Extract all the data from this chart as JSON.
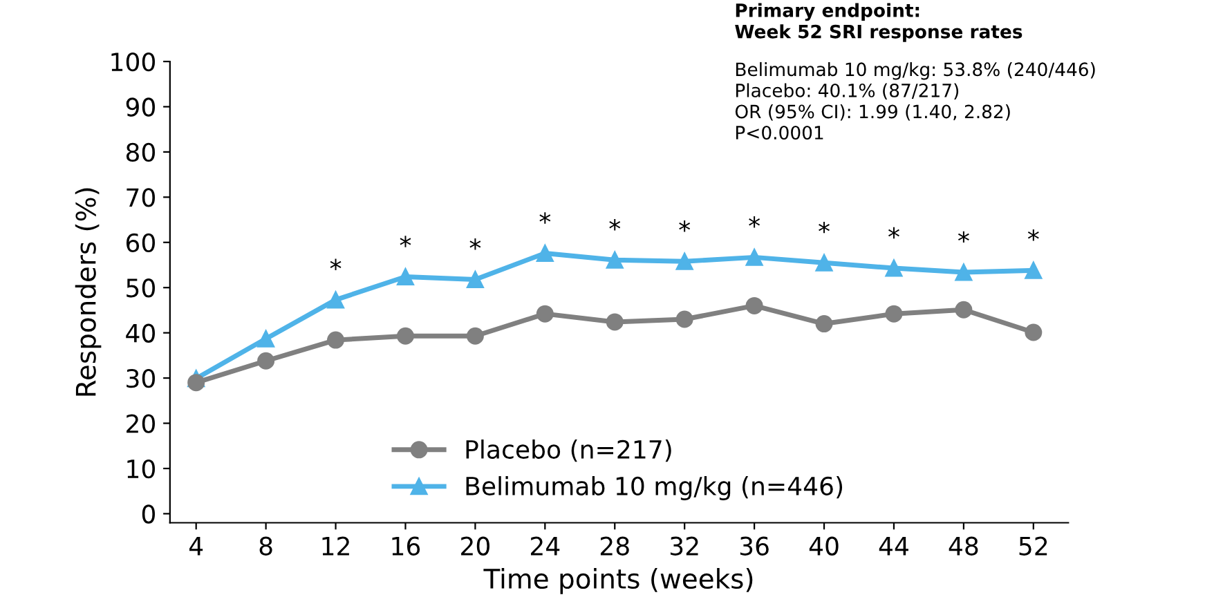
{
  "chart_data": {
    "type": "line",
    "xlabel": "Time points (weeks)",
    "ylabel": "Responders (%)",
    "x": [
      4,
      8,
      12,
      16,
      20,
      24,
      28,
      32,
      36,
      40,
      44,
      48,
      52
    ],
    "series": [
      {
        "name": "Placebo (n=217)",
        "color": "#808080",
        "marker": "circle",
        "values": [
          29,
          33.8,
          38.4,
          39.3,
          39.3,
          44.2,
          42.4,
          43,
          46,
          42,
          44.2,
          45.1,
          40.1
        ]
      },
      {
        "name": "Belimumab 10 mg/kg (n=446)",
        "color": "#4fb3e8",
        "marker": "triangle",
        "values": [
          29.9,
          38.7,
          47.3,
          52.4,
          51.8,
          57.6,
          56.1,
          55.8,
          56.7,
          55.5,
          54.3,
          53.4,
          53.8
        ]
      }
    ],
    "xlim": [
      2.5,
      54
    ],
    "xticks": [
      4,
      8,
      12,
      16,
      20,
      24,
      28,
      32,
      36,
      40,
      44,
      48,
      52
    ],
    "ylim": [
      -2,
      100
    ],
    "yticks": [
      0,
      10,
      20,
      30,
      40,
      50,
      60,
      70,
      80,
      90,
      100
    ],
    "grid": false,
    "legend": "bottom",
    "line_style": "solid",
    "annotations": [
      {
        "text": "*",
        "x": 12,
        "y": 47.3
      },
      {
        "text": "*",
        "x": 16,
        "y": 52.4
      },
      {
        "text": "*",
        "x": 20,
        "y": 51.8
      },
      {
        "text": "*",
        "x": 24,
        "y": 57.6
      },
      {
        "text": "*",
        "x": 28,
        "y": 56.1
      },
      {
        "text": "*",
        "x": 32,
        "y": 55.8
      },
      {
        "text": "*",
        "x": 36,
        "y": 56.7
      },
      {
        "text": "*",
        "x": 40,
        "y": 55.5
      },
      {
        "text": "*",
        "x": 44,
        "y": 54.3
      },
      {
        "text": "*",
        "x": 48,
        "y": 53.4
      },
      {
        "text": "*",
        "x": 52,
        "y": 53.8
      },
      "Primary endpoint:\nWeek 52 SRI response rates",
      "Belimumab 10 mg/kg: 53.8% (240/446)\nPlacebo: 40.1% (87/217)\nOR (95% CI): 1.99 (1.40, 2.82)\nP<0.0001"
    ]
  }
}
